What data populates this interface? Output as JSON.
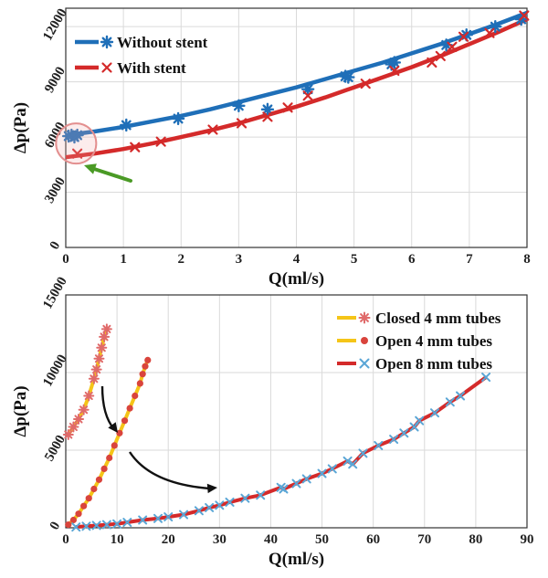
{
  "chart_data": [
    {
      "type": "line",
      "xlabel": "Q(ml/s)",
      "ylabel": "Δp(Pa)",
      "xlim": [
        0,
        8
      ],
      "ylim": [
        0,
        13000
      ],
      "xticks": [
        "0",
        "1",
        "2",
        "3",
        "4",
        "5",
        "6",
        "7",
        "8"
      ],
      "yticks": [
        "0",
        "3000",
        "6000",
        "9000",
        "12000"
      ],
      "grid": true,
      "legend_position": "top-left",
      "series": [
        {
          "name": "Without stent",
          "color": "#1f6fb8",
          "marker": "asterisk",
          "fit_x": [
            0,
            0.5,
            1,
            1.5,
            2,
            2.5,
            3,
            3.5,
            4,
            4.5,
            5,
            5.5,
            6,
            6.5,
            7,
            7.5,
            8
          ],
          "fit_y": [
            6100,
            6300,
            6550,
            6850,
            7150,
            7500,
            7900,
            8300,
            8700,
            9150,
            9600,
            10050,
            10550,
            11050,
            11600,
            12150,
            12750
          ],
          "points_x": [
            0.05,
            0.1,
            0.15,
            0.2,
            1.05,
            1.95,
            3.0,
            3.5,
            4.2,
            4.85,
            4.9,
            5.65,
            5.7,
            6.6,
            6.95,
            7.45,
            7.9
          ],
          "points_y": [
            6050,
            6100,
            6000,
            6100,
            6650,
            7000,
            7700,
            7500,
            8600,
            9300,
            9250,
            9950,
            10050,
            11000,
            11550,
            12000,
            12400
          ]
        },
        {
          "name": "With stent",
          "color": "#d42a2a",
          "marker": "x",
          "fit_x": [
            0,
            0.5,
            1,
            1.5,
            2,
            2.5,
            3,
            3.5,
            4,
            4.5,
            5,
            5.5,
            6,
            6.5,
            7,
            7.5,
            8
          ],
          "fit_y": [
            4900,
            5100,
            5350,
            5650,
            6000,
            6350,
            6750,
            7200,
            7650,
            8150,
            8700,
            9250,
            9800,
            10400,
            11050,
            11700,
            12400
          ],
          "points_x": [
            0.2,
            1.2,
            1.65,
            2.55,
            3.05,
            3.5,
            3.85,
            4.2,
            5.2,
            5.7,
            6.35,
            6.5,
            6.7,
            6.9,
            7.35,
            7.95
          ],
          "points_y": [
            5100,
            5450,
            5750,
            6400,
            6750,
            7100,
            7600,
            8250,
            8900,
            9600,
            10050,
            10400,
            10900,
            11450,
            11650,
            12600
          ]
        }
      ],
      "annotations": [
        "circle-highlight-at-zero-flow",
        "green-arrow"
      ]
    },
    {
      "type": "line",
      "xlabel": "Q(ml/s)",
      "ylabel": "Δp(Pa)",
      "xlim": [
        0,
        90
      ],
      "ylim": [
        0,
        15000
      ],
      "xticks": [
        "0",
        "10",
        "20",
        "30",
        "40",
        "50",
        "60",
        "70",
        "80",
        "90"
      ],
      "yticks": [
        "0",
        "5000",
        "10000",
        "15000"
      ],
      "grid": true,
      "legend_position": "top-right",
      "series": [
        {
          "name": "Closed 4 mm tubes",
          "line_color": "#f5c518",
          "marker_color": "#e06a6a",
          "marker": "asterisk",
          "points_x": [
            0.5,
            1.5,
            2.5,
            3.5,
            4.5,
            5.5,
            6.0,
            6.5,
            7.0,
            7.5,
            8.0
          ],
          "points_y": [
            6000,
            6500,
            7000,
            7600,
            8500,
            9600,
            10200,
            10900,
            11600,
            12300,
            12800
          ]
        },
        {
          "name": "Open 4 mm tubes",
          "line_color": "#f5c518",
          "marker_color": "#d9443c",
          "marker": "dot",
          "points_x": [
            0.5,
            1.5,
            2.5,
            3.5,
            4.5,
            5.5,
            6.5,
            7.5,
            8.5,
            9.5,
            10.5,
            11.5,
            12.5,
            13.5,
            14.5,
            15.0,
            15.5,
            16.0
          ],
          "points_y": [
            200,
            500,
            900,
            1400,
            1900,
            2500,
            3100,
            3800,
            4500,
            5300,
            6100,
            6900,
            7700,
            8500,
            9300,
            9900,
            10400,
            10800
          ]
        },
        {
          "name": "Open 8 mm tubes",
          "line_color": "#d42a2a",
          "marker_color": "#5aa6d6",
          "marker": "x",
          "points_x": [
            2,
            4,
            6,
            8,
            10,
            12,
            15,
            18,
            20,
            23,
            26,
            28,
            30,
            32,
            35,
            38,
            42,
            42.5,
            45,
            47,
            50,
            52,
            55,
            56,
            58,
            61,
            64,
            66,
            68,
            69,
            72,
            75,
            77,
            82
          ],
          "points_y": [
            50,
            100,
            150,
            200,
            250,
            350,
            500,
            600,
            700,
            850,
            1100,
            1300,
            1450,
            1650,
            1900,
            2100,
            2600,
            2500,
            2850,
            3150,
            3500,
            3800,
            4300,
            4100,
            4800,
            5300,
            5700,
            6100,
            6500,
            6900,
            7400,
            8100,
            8500,
            9700
          ]
        }
      ],
      "annotations": [
        "black-arrow-1",
        "black-arrow-2"
      ]
    }
  ]
}
